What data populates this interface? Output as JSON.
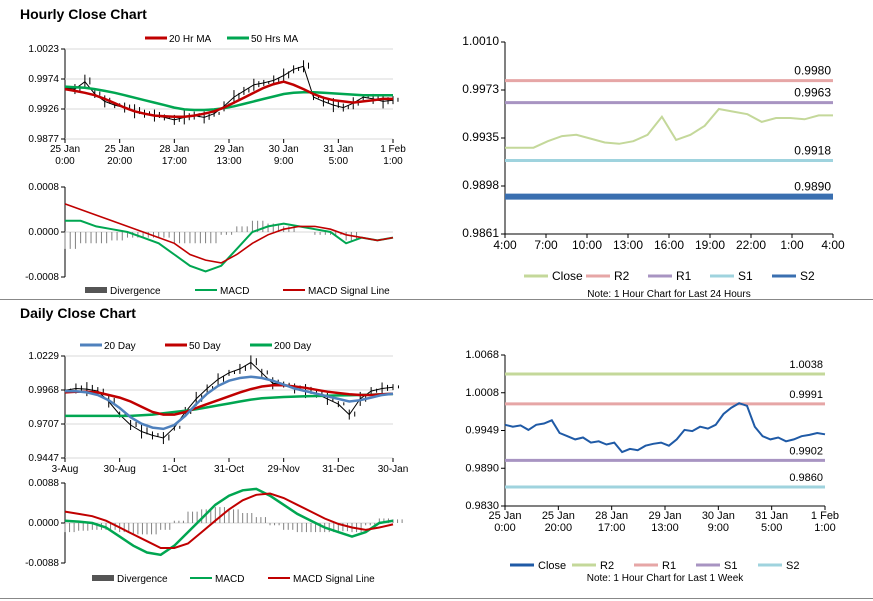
{
  "sections": {
    "hourly_title": "Hourly Close Chart",
    "daily_title": "Daily Close Chart"
  },
  "chart_data": [
    {
      "id": "hourly_price",
      "type": "line",
      "legend": [
        "20 Hr MA",
        "50 Hrs MA"
      ],
      "colors": {
        "ma20": "#c00000",
        "ma50": "#00a651",
        "price": "#000000"
      },
      "yticks": [
        "1.0023",
        "0.9974",
        "0.9926",
        "0.9877"
      ],
      "ylim": [
        0.9877,
        1.0023
      ],
      "xticks": [
        [
          "25 Jan",
          "0:00"
        ],
        [
          "25 Jan",
          "20:00"
        ],
        [
          "28 Jan",
          "17:00"
        ],
        [
          "29 Jan",
          "13:00"
        ],
        [
          "30 Jan",
          "9:00"
        ],
        [
          "31 Jan",
          "5:00"
        ],
        [
          "1 Feb",
          "1:00"
        ]
      ],
      "series": [
        {
          "name": "Close",
          "values": [
            0.996,
            0.9958,
            0.997,
            0.995,
            0.9938,
            0.9932,
            0.9928,
            0.9922,
            0.9918,
            0.9915,
            0.9912,
            0.9908,
            0.9912,
            0.9915,
            0.9912,
            0.9918,
            0.993,
            0.9945,
            0.9955,
            0.9965,
            0.9968,
            0.9972,
            0.998,
            0.999,
            0.9995,
            0.9945,
            0.9938,
            0.9932,
            0.9928,
            0.9935,
            0.9945,
            0.9942,
            0.9938,
            0.994
          ]
        },
        {
          "name": "20 Hr MA",
          "values": [
            0.9958,
            0.9955,
            0.9952,
            0.9948,
            0.9942,
            0.9935,
            0.9928,
            0.9922,
            0.9918,
            0.9915,
            0.9914,
            0.9913,
            0.9913,
            0.9915,
            0.9918,
            0.9922,
            0.9928,
            0.9936,
            0.9944,
            0.9952,
            0.996,
            0.9966,
            0.997,
            0.9965,
            0.9958,
            0.995,
            0.9944,
            0.994,
            0.9938,
            0.9936,
            0.9938,
            0.994,
            0.9942,
            0.9942
          ]
        },
        {
          "name": "50 Hrs MA",
          "values": [
            0.9962,
            0.9961,
            0.996,
            0.9958,
            0.9955,
            0.9952,
            0.9948,
            0.9944,
            0.994,
            0.9936,
            0.9932,
            0.9928,
            0.9925,
            0.9924,
            0.9924,
            0.9925,
            0.9927,
            0.993,
            0.9934,
            0.9938,
            0.9942,
            0.9946,
            0.995,
            0.9952,
            0.9953,
            0.9953,
            0.9952,
            0.9951,
            0.995,
            0.9949,
            0.9948,
            0.9948,
            0.9948,
            0.9948
          ]
        }
      ]
    },
    {
      "id": "hourly_macd",
      "type": "line",
      "legend": [
        "Divergence",
        "MACD",
        "MACD Signal Line"
      ],
      "yticks": [
        "0.0008",
        "0.0000",
        "-0.0008"
      ],
      "ylim": [
        -0.0008,
        0.0008
      ],
      "series": [
        {
          "name": "MACD",
          "values": [
            0.0002,
            0.0002,
            0.0001,
            5e-05,
            0.0,
            -0.0001,
            -0.0002,
            -0.0004,
            -0.0006,
            -0.0007,
            -0.0006,
            -0.0003,
            0.0,
            0.0001,
            0.00015,
            0.0001,
            5e-05,
            0.0,
            -0.0002,
            -0.0001,
            -0.00015,
            -0.0001
          ]
        },
        {
          "name": "MACD Signal Line",
          "values": [
            0.0005,
            0.0004,
            0.0003,
            0.0002,
            0.0001,
            0.0,
            -0.0001,
            -0.0002,
            -0.0004,
            -0.0005,
            -0.00055,
            -0.0004,
            -0.0002,
            -5e-05,
            5e-05,
            0.0001,
            0.0001,
            5e-05,
            -5e-05,
            -0.0001,
            -0.00015,
            -0.0001
          ]
        },
        {
          "name": "Divergence",
          "values": [
            -0.0003,
            -0.0002,
            -0.0002,
            -0.00015,
            -0.0001,
            -0.0001,
            -0.0001,
            -0.0002,
            -0.0002,
            -0.0002,
            -5e-05,
            0.0001,
            0.0002,
            0.00015,
            0.0001,
            0.0,
            -5e-05,
            -5e-05,
            -0.00015,
            0.0,
            0.0,
            0.0
          ]
        }
      ]
    },
    {
      "id": "hourly_levels",
      "type": "line",
      "yticks": [
        "1.0010",
        "0.9973",
        "0.9935",
        "0.9898",
        "0.9861"
      ],
      "ylim": [
        0.9861,
        1.001
      ],
      "xticks": [
        "4:00",
        "7:00",
        "10:00",
        "13:00",
        "16:00",
        "19:00",
        "22:00",
        "1:00",
        "4:00"
      ],
      "levels": [
        {
          "name": "R2",
          "value": 0.998,
          "label": "0.9980",
          "color": "#e6a6a6"
        },
        {
          "name": "R1",
          "value": 0.9963,
          "label": "0.9963",
          "color": "#a894c2"
        },
        {
          "name": "S1",
          "value": 0.9918,
          "label": "0.9918",
          "color": "#9fd3de"
        },
        {
          "name": "S2",
          "value": 0.989,
          "label": "0.9890",
          "color": "#3a6fb0"
        }
      ],
      "close": {
        "name": "Close",
        "color": "#c4d89a",
        "values": [
          0.9928,
          0.9928,
          0.9928,
          0.9933,
          0.9937,
          0.9938,
          0.9935,
          0.9932,
          0.9931,
          0.9933,
          0.9938,
          0.9952,
          0.9934,
          0.9938,
          0.9945,
          0.9958,
          0.9956,
          0.9954,
          0.9948,
          0.9951,
          0.9951,
          0.995,
          0.9953,
          0.9953
        ]
      },
      "legend": [
        "Close",
        "R2",
        "R1",
        "S1",
        "S2"
      ],
      "note": "Note: 1 Hour Chart for Last 24 Hours"
    },
    {
      "id": "daily_price",
      "type": "line",
      "legend": [
        "20 Day",
        "50 Day",
        "200 Day"
      ],
      "colors": {
        "d20": "#4f81bd",
        "d50": "#c00000",
        "d200": "#00a651",
        "price": "#000000"
      },
      "yticks": [
        "1.0229",
        "0.9968",
        "0.9707",
        "0.9447"
      ],
      "ylim": [
        0.9447,
        1.0229
      ],
      "xticks": [
        "3-Aug",
        "30-Aug",
        "1-Oct",
        "31-Oct",
        "29-Nov",
        "31-Dec",
        "30-Jan"
      ],
      "series": [
        {
          "name": "Close",
          "values": [
            0.9965,
            0.998,
            0.9975,
            0.996,
            0.988,
            0.978,
            0.97,
            0.965,
            0.962,
            0.96,
            0.968,
            0.98,
            0.99,
            0.998,
            1.005,
            1.01,
            1.013,
            1.018,
            1.01,
            1.002,
            1.001,
            0.998,
            0.996,
            0.994,
            0.99,
            0.986,
            0.978,
            0.99,
            0.996,
            0.998,
            0.999
          ]
        },
        {
          "name": "20 Day",
          "values": [
            0.996,
            0.9958,
            0.995,
            0.993,
            0.989,
            0.983,
            0.976,
            0.971,
            0.968,
            0.967,
            0.97,
            0.977,
            0.986,
            0.994,
            1.0,
            1.004,
            1.006,
            1.007,
            1.006,
            1.004,
            1.001,
            0.998,
            0.996,
            0.994,
            0.992,
            0.99,
            0.988,
            0.989,
            0.991,
            0.993,
            0.994
          ]
        },
        {
          "name": "50 Day",
          "values": [
            0.995,
            0.9955,
            0.9955,
            0.995,
            0.993,
            0.991,
            0.988,
            0.984,
            0.98,
            0.978,
            0.978,
            0.98,
            0.983,
            0.986,
            0.989,
            0.992,
            0.995,
            0.9975,
            0.9995,
            1.0005,
            1.0005,
            0.9995,
            0.9985,
            0.997,
            0.9955,
            0.9945,
            0.9935,
            0.993,
            0.993,
            0.9935,
            0.994
          ]
        },
        {
          "name": "200 Day",
          "values": [
            0.977,
            0.977,
            0.977,
            0.977,
            0.977,
            0.977,
            0.977,
            0.9775,
            0.978,
            0.979,
            0.98,
            0.981,
            0.982,
            0.9835,
            0.985,
            0.9865,
            0.988,
            0.9895,
            0.9905,
            0.991,
            0.9915,
            0.9918,
            0.992,
            0.9922,
            0.9925,
            0.9927,
            0.9928,
            0.993,
            0.9932,
            0.9935,
            0.9938
          ]
        }
      ]
    },
    {
      "id": "daily_macd",
      "type": "line",
      "legend": [
        "Divergence",
        "MACD",
        "MACD Signal Line"
      ],
      "yticks": [
        "0.0088",
        "0.0000",
        "-0.0088"
      ],
      "ylim": [
        -0.0088,
        0.0088
      ],
      "series": [
        {
          "name": "MACD",
          "values": [
            0.0005,
            0.0003,
            0.0,
            -0.001,
            -0.003,
            -0.005,
            -0.0065,
            -0.007,
            -0.005,
            -0.002,
            0.001,
            0.004,
            0.006,
            0.0072,
            0.0075,
            0.006,
            0.004,
            0.002,
            0.0005,
            -0.001,
            -0.002,
            -0.003,
            -0.002,
            0.0,
            0.0005
          ]
        },
        {
          "name": "MACD Signal Line",
          "values": [
            0.0025,
            0.002,
            0.0015,
            0.0005,
            -0.001,
            -0.0025,
            -0.004,
            -0.0055,
            -0.0055,
            -0.0045,
            -0.002,
            0.0005,
            0.003,
            0.005,
            0.0062,
            0.0065,
            0.0055,
            0.004,
            0.0025,
            0.001,
            -0.0002,
            -0.001,
            -0.0015,
            -0.001,
            -0.0003
          ]
        },
        {
          "name": "Divergence",
          "values": [
            -0.002,
            -0.0017,
            -0.0015,
            -0.0015,
            -0.002,
            -0.0025,
            -0.0025,
            -0.0015,
            0.0005,
            0.0025,
            0.003,
            0.0035,
            0.003,
            0.0022,
            0.0013,
            -0.0005,
            -0.0015,
            -0.002,
            -0.002,
            -0.002,
            -0.0018,
            -0.002,
            -0.0005,
            0.001,
            0.0008
          ]
        }
      ]
    },
    {
      "id": "daily_levels",
      "type": "line",
      "yticks": [
        "1.0068",
        "1.0008",
        "0.9949",
        "0.9890",
        "0.9830"
      ],
      "ylim": [
        0.983,
        1.0068
      ],
      "xticks": [
        [
          "25 Jan",
          "0:00"
        ],
        [
          "25 Jan",
          "20:00"
        ],
        [
          "28 Jan",
          "17:00"
        ],
        [
          "29 Jan",
          "13:00"
        ],
        [
          "30 Jan",
          "9:00"
        ],
        [
          "31 Jan",
          "5:00"
        ],
        [
          "1 Feb",
          "1:00"
        ]
      ],
      "levels": [
        {
          "name": "R2",
          "value": 1.0038,
          "label": "1.0038",
          "color": "#c4d89a"
        },
        {
          "name": "R1",
          "value": 0.9991,
          "label": "0.9991",
          "color": "#e6a6a6"
        },
        {
          "name": "S1",
          "value": 0.9902,
          "label": "0.9902",
          "color": "#a894c2"
        },
        {
          "name": "S2",
          "value": 0.986,
          "label": "0.9860",
          "color": "#9fd3de"
        }
      ],
      "close": {
        "name": "Close",
        "color": "#1f5aa6",
        "values": [
          0.9958,
          0.9955,
          0.9957,
          0.995,
          0.9958,
          0.996,
          0.9965,
          0.9945,
          0.994,
          0.9935,
          0.9938,
          0.993,
          0.9932,
          0.9927,
          0.993,
          0.9915,
          0.992,
          0.9918,
          0.9925,
          0.9928,
          0.993,
          0.9925,
          0.9935,
          0.995,
          0.9948,
          0.9955,
          0.9952,
          0.9958,
          0.9975,
          0.9985,
          0.9992,
          0.9988,
          0.9955,
          0.994,
          0.9935,
          0.9938,
          0.9932,
          0.9935,
          0.994,
          0.9942,
          0.9945,
          0.9943
        ]
      },
      "legend": [
        "Close",
        "R2",
        "R1",
        "S1",
        "S2"
      ],
      "note": "Note: 1 Hour Chart for Last 1 Week"
    }
  ]
}
